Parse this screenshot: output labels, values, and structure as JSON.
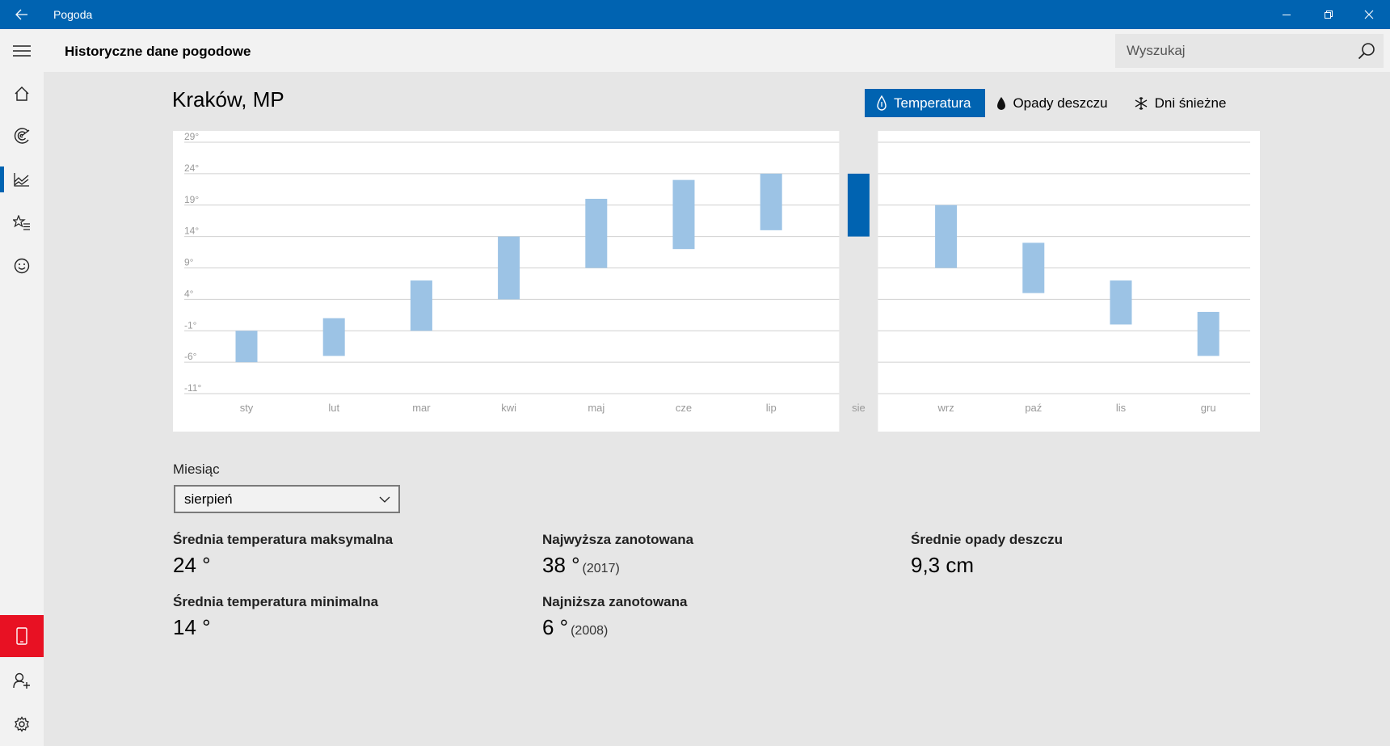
{
  "window": {
    "title": "Pogoda"
  },
  "header": {
    "title": "Historyczne dane pogodowe",
    "search_placeholder": "Wyszukaj"
  },
  "location": "Kraków, MP",
  "metric_tabs": [
    {
      "label": "Temperatura",
      "icon": "thermometer-drop-icon",
      "selected": true
    },
    {
      "label": "Opady deszczu",
      "icon": "raindrop-icon",
      "selected": false
    },
    {
      "label": "Dni śnieżne",
      "icon": "snowflake-icon",
      "selected": false
    }
  ],
  "sidebar": {
    "items": [
      {
        "name": "menu",
        "icon": "hamburger-icon"
      },
      {
        "name": "home",
        "icon": "home-icon"
      },
      {
        "name": "maps",
        "icon": "radar-icon"
      },
      {
        "name": "historical",
        "icon": "chart-icon",
        "active": true
      },
      {
        "name": "places",
        "icon": "star-list-icon"
      },
      {
        "name": "feedback",
        "icon": "smiley-icon"
      },
      {
        "name": "phone",
        "icon": "phone-icon"
      },
      {
        "name": "account",
        "icon": "person-add-icon"
      },
      {
        "name": "settings",
        "icon": "gear-icon"
      }
    ]
  },
  "chart_data": {
    "type": "bar",
    "subtype": "range",
    "categories": [
      "sty",
      "lut",
      "mar",
      "kwi",
      "maj",
      "cze",
      "lip",
      "sie",
      "wrz",
      "paź",
      "lis",
      "gru"
    ],
    "series": [
      {
        "low": [
          -6,
          -5,
          -1,
          4,
          9,
          12,
          15,
          14,
          9,
          5,
          0,
          -5
        ],
        "high": [
          -1,
          1,
          7,
          14,
          20,
          23,
          24,
          24,
          19,
          13,
          7,
          2
        ]
      }
    ],
    "selected_index": 7,
    "y_ticks": [
      "29°",
      "24°",
      "19°",
      "14°",
      "9°",
      "4°",
      "-1°",
      "-6°",
      "-11°"
    ],
    "y_tick_values": [
      29,
      24,
      19,
      14,
      9,
      4,
      -1,
      -6,
      -11
    ],
    "ylim": [
      -11,
      29
    ],
    "colors": {
      "bar": "#9cc3e5",
      "selected": "#0063b1",
      "grid": "#d0d0d0"
    }
  },
  "month_picker": {
    "label": "Miesiąc",
    "value": "sierpień"
  },
  "stats": {
    "avg_max": {
      "label": "Średnia temperatura maksymalna",
      "value": "24 °"
    },
    "avg_min": {
      "label": "Średnia temperatura minimalna",
      "value": "14 °"
    },
    "record_high": {
      "label": "Najwyższa zanotowana",
      "value": "38 °",
      "year": "(2017)"
    },
    "record_low": {
      "label": "Najniższa zanotowana",
      "value": "6 °",
      "year": "(2008)"
    },
    "avg_rain": {
      "label": "Średnie opady deszczu",
      "value": "9,3 cm"
    }
  }
}
